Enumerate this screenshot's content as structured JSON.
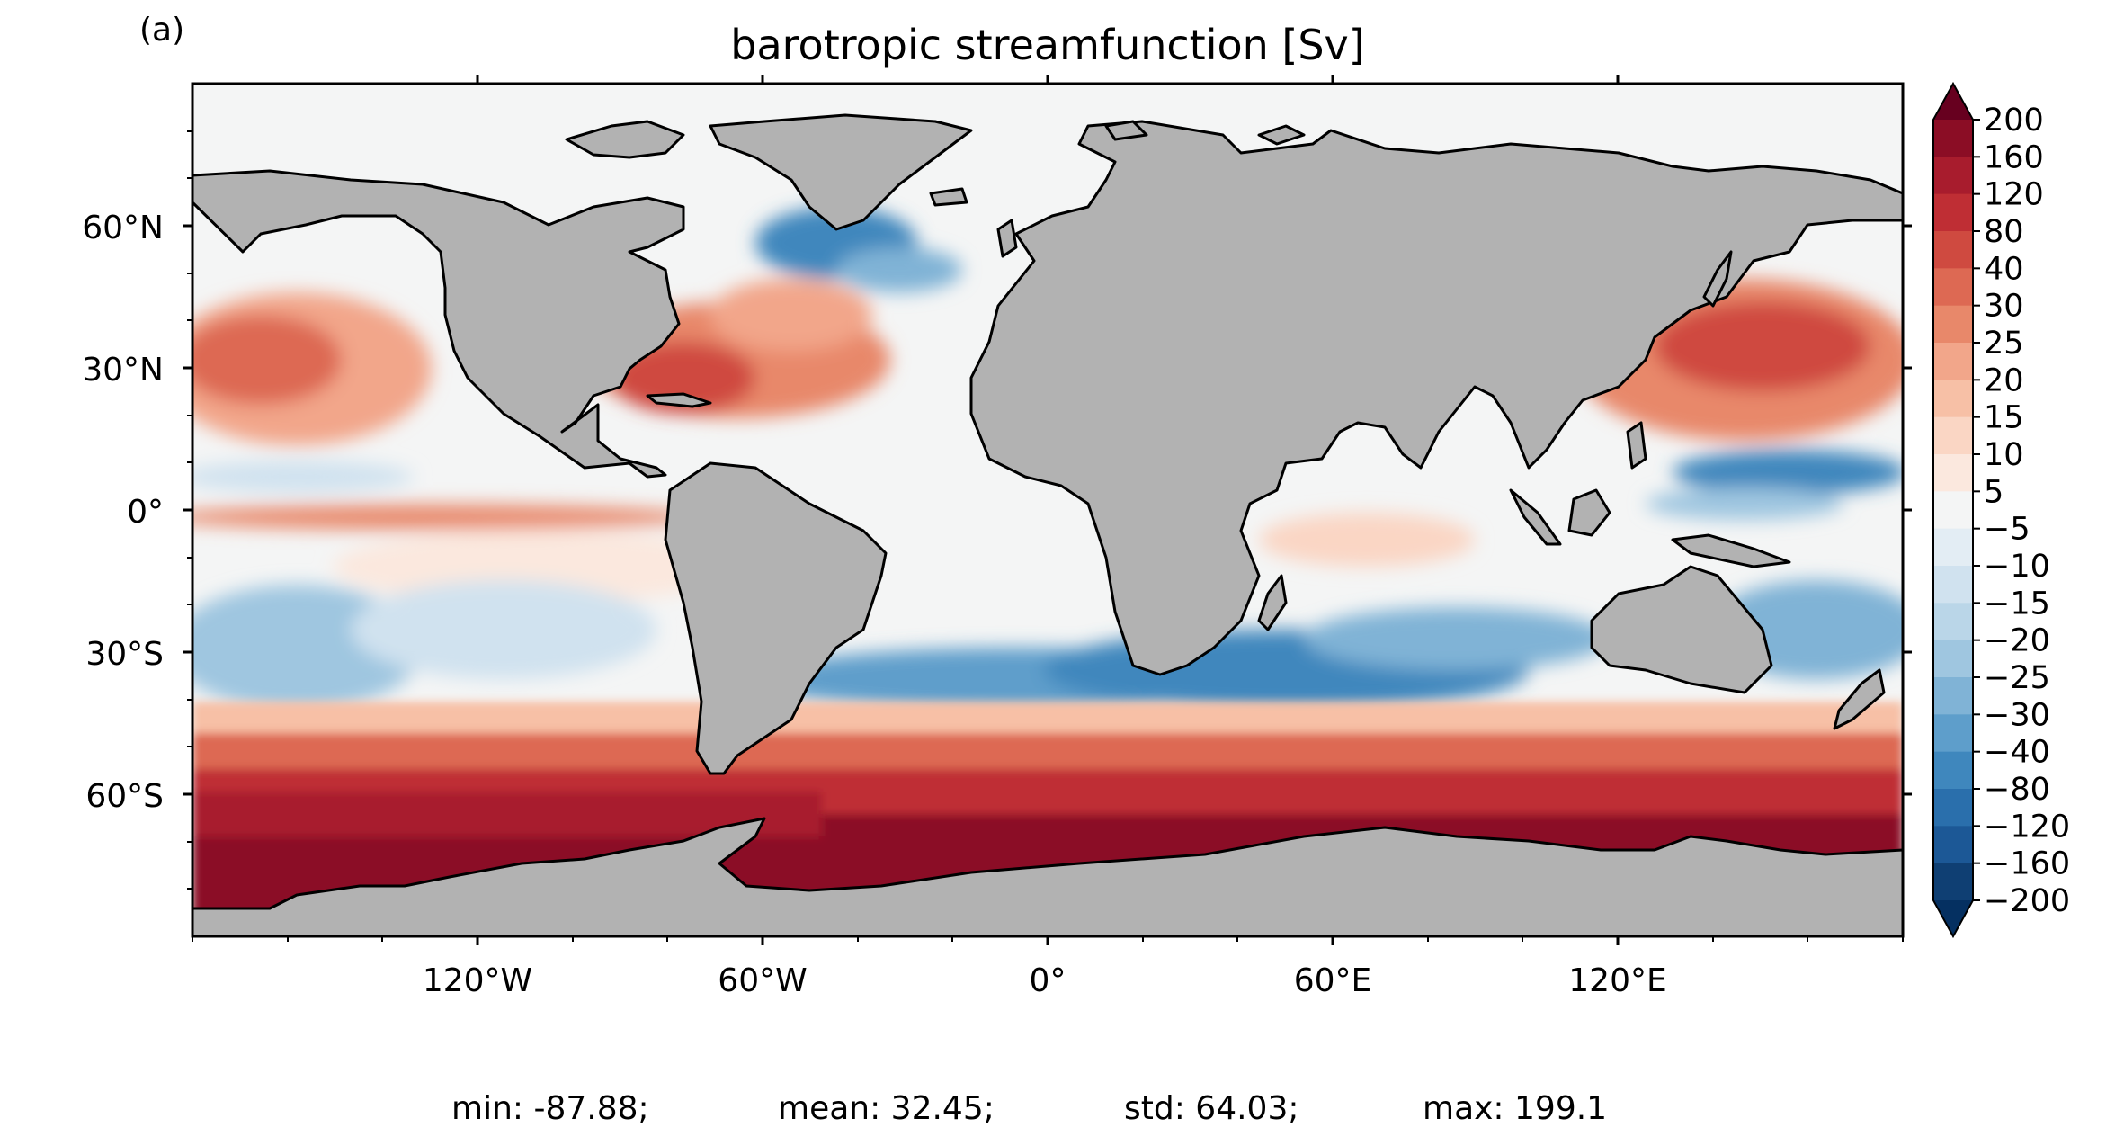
{
  "panel_label": "(a)",
  "title": "barotropic streamfunction [Sv]",
  "lat_ticks": [
    "60°N",
    "30°N",
    "0°",
    "30°S",
    "60°S"
  ],
  "lon_ticks": [
    "120°W",
    "60°W",
    "0°",
    "60°E",
    "120°E"
  ],
  "colorbar": {
    "labels": [
      "200",
      "160",
      "120",
      "80",
      "40",
      "30",
      "25",
      "20",
      "15",
      "10",
      "5",
      "−5",
      "−10",
      "−15",
      "−20",
      "−25",
      "−30",
      "−40",
      "−80",
      "−120",
      "−160",
      "−200"
    ],
    "colors": [
      "#8b0d25",
      "#a81c2d",
      "#bf2e34",
      "#cf4a40",
      "#dd6953",
      "#e8886a",
      "#f2a68a",
      "#f7c0a6",
      "#fad6c4",
      "#fbe8de",
      "#f4f5f5",
      "#e3edf4",
      "#d0e2ef",
      "#bad6e8",
      "#9fc6e0",
      "#80b3d6",
      "#5e9ecb",
      "#3f87bd",
      "#2a6fac",
      "#1c5896",
      "#0f3f73"
    ]
  },
  "stats": {
    "min": "min: -87.88;",
    "mean": "mean: 32.45;",
    "std": "std: 64.03;",
    "max": "max: 199.1"
  },
  "map_colors": {
    "land": "#b2b2b2",
    "coast": "#000000",
    "neutral_ocean": "#f4f5f5"
  }
}
